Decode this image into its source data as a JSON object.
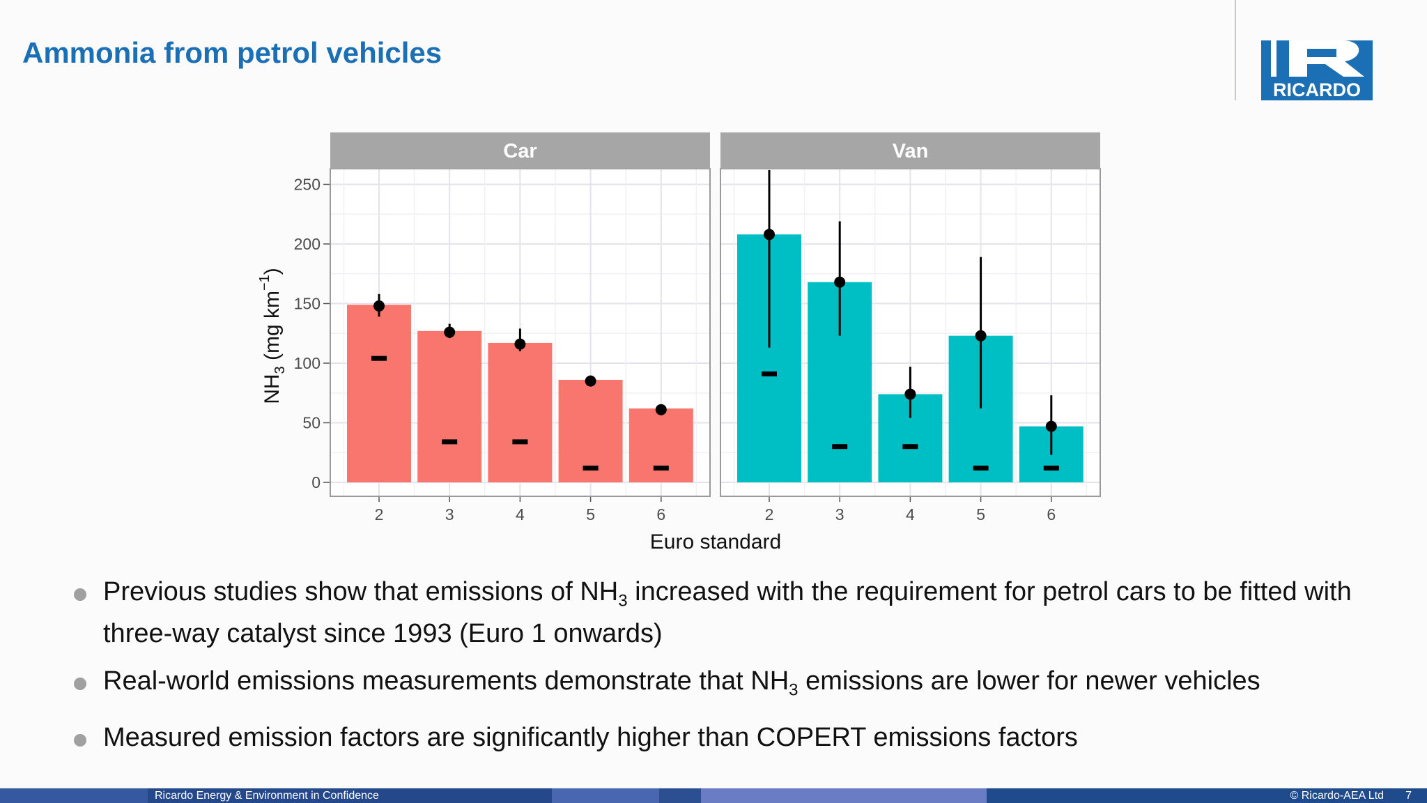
{
  "slide": {
    "title": "Ammonia from petrol vehicles"
  },
  "logo": {
    "text": "RICARDO",
    "color": "#1a6fb5"
  },
  "bullets": [
    {
      "before": "Previous studies show that emissions of NH",
      "sub": "3",
      "after": " increased with the requirement for petrol cars to be fitted with three-way catalyst since 1993 (Euro 1 onwards)"
    },
    {
      "before": "Real-world emissions measurements demonstrate that NH",
      "sub": "3",
      "after": " emissions are lower for newer vehicles"
    },
    {
      "before": "Measured emission factors are significantly higher than COPERT emissions factors",
      "sub": "",
      "after": ""
    }
  ],
  "footer": {
    "left_text": "Ricardo Energy & Environment in Confidence",
    "right_text": "© Ricardo-AEA Ltd",
    "page_number": "7"
  },
  "chart_data": {
    "type": "bar",
    "xlabel": "Euro standard",
    "ylabel_main": "NH",
    "ylabel_sub": "3",
    "ylabel_rest": " (mg km",
    "ylabel_sup": "−1",
    "ylabel_end": ")",
    "ylim": [
      0,
      265
    ],
    "yticks": [
      0,
      50,
      100,
      150,
      200,
      250
    ],
    "grid": true,
    "panels": [
      {
        "name": "Car",
        "color": "#f8766d",
        "categories": [
          "2",
          "3",
          "4",
          "5",
          "6"
        ],
        "values": [
          149,
          127,
          117,
          86,
          62
        ],
        "points": [
          148,
          126,
          116,
          85,
          61
        ],
        "error_low": [
          139,
          121,
          110,
          83,
          59
        ],
        "error_high": [
          158,
          133,
          129,
          88,
          64
        ],
        "copert": [
          104,
          34,
          34,
          12,
          12
        ]
      },
      {
        "name": "Van",
        "color": "#00bfc4",
        "categories": [
          "2",
          "3",
          "4",
          "5",
          "6"
        ],
        "values": [
          208,
          168,
          74,
          123,
          47
        ],
        "points": [
          208,
          168,
          74,
          123,
          47
        ],
        "error_low": [
          113,
          123,
          54,
          62,
          23
        ],
        "error_high": [
          262,
          219,
          97,
          189,
          73
        ],
        "copert": [
          91,
          30,
          30,
          12,
          12
        ]
      }
    ]
  }
}
